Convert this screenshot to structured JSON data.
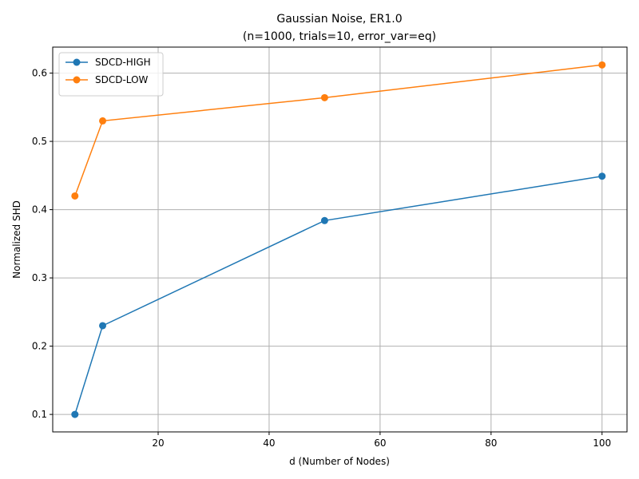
{
  "chart_data": {
    "type": "line",
    "title": "Gaussian Noise, ER1.0",
    "subtitle": "(n=1000, trials=10, error_var=eq)",
    "xlabel": "d (Number of Nodes)",
    "ylabel": "Normalized SHD",
    "x": [
      5,
      10,
      50,
      100
    ],
    "xlim": [
      1,
      104.5
    ],
    "ylim": [
      0.0744,
      0.6381
    ],
    "xticks": [
      20,
      40,
      60,
      80,
      100
    ],
    "yticks": [
      0.1,
      0.2,
      0.3,
      0.4,
      0.5,
      0.6
    ],
    "xtick_labels": [
      "20",
      "40",
      "60",
      "80",
      "100"
    ],
    "ytick_labels": [
      "0.1",
      "0.2",
      "0.3",
      "0.4",
      "0.5",
      "0.6"
    ],
    "grid": true,
    "legend_position": "upper-left",
    "series": [
      {
        "name": "SDCD-HIGH",
        "color": "#1f77b4",
        "values": [
          0.1,
          0.23,
          0.384,
          0.449
        ]
      },
      {
        "name": "SDCD-LOW",
        "color": "#ff7f0e",
        "values": [
          0.42,
          0.53,
          0.564,
          0.612
        ]
      }
    ]
  }
}
